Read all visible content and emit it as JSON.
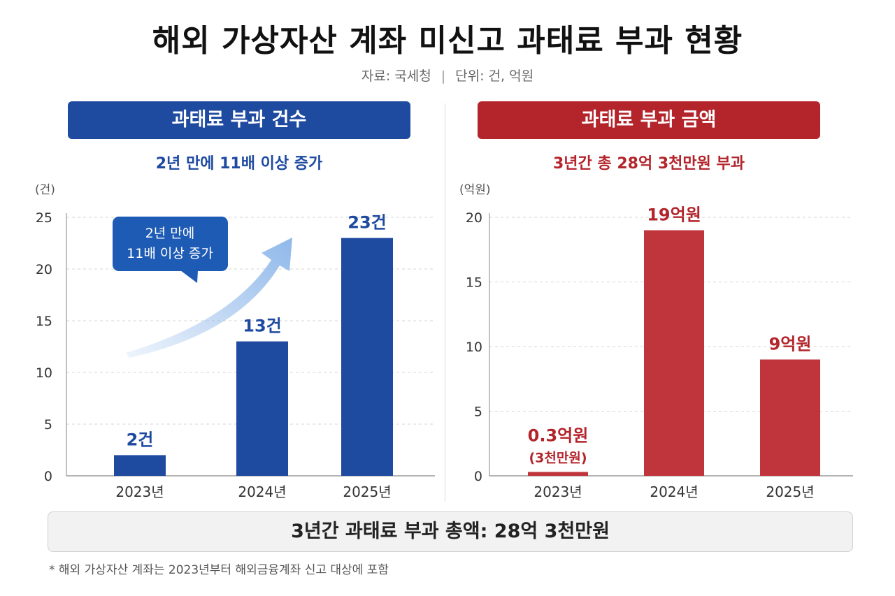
{
  "title": "해외 가상자산 계좌 미신고 과태료 부과 현황",
  "source": {
    "left": "자료: 국세청",
    "separator": "|",
    "right": "단위: 건, 억원"
  },
  "left_panel": {
    "header": "과태료 부과 건수",
    "subtitle": "2년 만에 11배 이상 증가"
  },
  "right_panel": {
    "header": "과태료 부과 금액",
    "subtitle": "3년간 총 28억 3천만원 부과"
  },
  "chart_data": [
    {
      "type": "bar",
      "unit_label": "(건)",
      "categories": [
        "2023년",
        "2024년",
        "2025년"
      ],
      "values": [
        2,
        13,
        23
      ],
      "data_labels": [
        [
          "2건"
        ],
        [
          "13건"
        ],
        [
          "23건"
        ]
      ],
      "ylim": [
        0,
        25
      ],
      "yticks": [
        0,
        5,
        10,
        15,
        20,
        25
      ],
      "grid": true,
      "bar_color": "#1e4aa0",
      "label_color": "#1e4aa0",
      "annotation": {
        "lines": [
          "2년 만에",
          "11배 이상 증가"
        ],
        "color": "#1e5bb5",
        "arrow_color": "#8fb8ea"
      }
    },
    {
      "type": "bar",
      "unit_label": "(억원)",
      "categories": [
        "2023년",
        "2024년",
        "2025년"
      ],
      "values": [
        0.3,
        19,
        9
      ],
      "data_labels": [
        [
          "0.3억원",
          "(3천만원)"
        ],
        [
          "19억원"
        ],
        [
          "9억원"
        ]
      ],
      "ylim": [
        0,
        20
      ],
      "yticks": [
        0,
        5,
        10,
        15,
        20
      ],
      "grid": true,
      "bar_color": "#c0353b",
      "label_color": "#b3242b"
    }
  ],
  "total": "3년간 과태료 부과 총액: 28억 3천만원",
  "footnote": "* 해외 가상자산 계좌는 2023년부터 해외금융계좌 신고 대상에 포함"
}
